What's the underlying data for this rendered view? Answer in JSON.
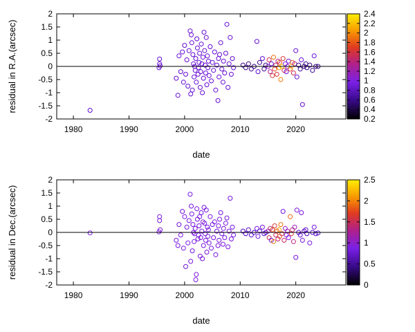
{
  "chart_data": [
    {
      "type": "scatter",
      "xlabel": "date",
      "ylabel": "residual in R.A.(arcsec)",
      "xlim": [
        1977,
        2029
      ],
      "ylim": [
        -2,
        2
      ],
      "xticks": [
        "1980",
        "1990",
        "2000",
        "2010",
        "2020"
      ],
      "yticks": [
        "-2",
        "-1.5",
        "-1",
        "-0.5",
        "0",
        "0.5",
        "1",
        "1.5",
        "2"
      ],
      "colorbar": {
        "min": 0.2,
        "max": 2.4,
        "ticks": [
          "0.2",
          "0.4",
          "0.6",
          "0.8",
          "1",
          "1.2",
          "1.4",
          "1.6",
          "1.8",
          "2",
          "2.2",
          "2.4"
        ],
        "palette": [
          "#000000",
          "#5000c8",
          "#8a1ae8",
          "#c0206a",
          "#e84a10",
          "#f89a00",
          "#ffee00"
        ]
      },
      "grid": false,
      "zero_line": true,
      "points": [
        [
          1983.0,
          -1.67,
          0.7
        ],
        [
          1995.5,
          0.28,
          0.7
        ],
        [
          1995.5,
          0.1,
          0.7
        ],
        [
          1995.6,
          0.02,
          0.7
        ],
        [
          1995.4,
          -0.05,
          0.7
        ],
        [
          1998.5,
          -0.45,
          0.7
        ],
        [
          1998.8,
          -1.1,
          0.7
        ],
        [
          1999.0,
          0.4,
          0.7
        ],
        [
          1999.3,
          -0.2,
          0.7
        ],
        [
          1999.6,
          0.55,
          0.7
        ],
        [
          1999.8,
          -0.6,
          0.7
        ],
        [
          2000.0,
          0.8,
          0.7
        ],
        [
          2000.2,
          -0.3,
          0.7
        ],
        [
          2000.4,
          0.25,
          0.7
        ],
        [
          2000.6,
          -0.75,
          0.7
        ],
        [
          2000.8,
          0.6,
          0.7
        ],
        [
          2001.0,
          1.35,
          0.7
        ],
        [
          2001.1,
          -1.05,
          0.7
        ],
        [
          2001.2,
          1.2,
          0.7
        ],
        [
          2001.3,
          0.9,
          0.7
        ],
        [
          2001.4,
          -0.9,
          0.7
        ],
        [
          2001.5,
          0.45,
          0.7
        ],
        [
          2001.6,
          0.1,
          0.7
        ],
        [
          2001.7,
          -0.4,
          0.7
        ],
        [
          2001.8,
          0.0,
          0.7
        ],
        [
          2001.9,
          -0.15,
          0.7
        ],
        [
          2002.0,
          0.3,
          0.7
        ],
        [
          2002.1,
          -0.6,
          0.7
        ],
        [
          2002.2,
          1.05,
          0.7
        ],
        [
          2002.3,
          0.7,
          0.7
        ],
        [
          2002.4,
          -0.3,
          0.7
        ],
        [
          2002.5,
          -0.05,
          0.7
        ],
        [
          2002.6,
          0.15,
          0.7
        ],
        [
          2002.7,
          0.5,
          0.7
        ],
        [
          2002.8,
          -0.8,
          0.7
        ],
        [
          2002.9,
          -0.2,
          0.7
        ],
        [
          2003.0,
          0.85,
          0.7
        ],
        [
          2003.1,
          0.1,
          0.7
        ],
        [
          2003.2,
          -1.0,
          0.7
        ],
        [
          2003.3,
          0.35,
          0.7
        ],
        [
          2003.4,
          -0.45,
          0.7
        ],
        [
          2003.5,
          1.3,
          0.7
        ],
        [
          2003.6,
          0.6,
          0.7
        ],
        [
          2003.7,
          0.05,
          0.7
        ],
        [
          2003.8,
          -0.25,
          0.7
        ],
        [
          2003.9,
          1.1,
          0.7
        ],
        [
          2004.0,
          -0.7,
          0.7
        ],
        [
          2004.1,
          0.4,
          0.7
        ],
        [
          2004.2,
          -0.05,
          0.7
        ],
        [
          2004.3,
          0.2,
          0.7
        ],
        [
          2004.4,
          -0.35,
          0.7
        ],
        [
          2004.6,
          0.75,
          0.7
        ],
        [
          2004.8,
          -0.55,
          0.7
        ],
        [
          2005.0,
          0.15,
          0.7
        ],
        [
          2005.2,
          -0.15,
          0.7
        ],
        [
          2005.4,
          0.55,
          0.7
        ],
        [
          2005.6,
          -0.9,
          0.7
        ],
        [
          2005.8,
          0.05,
          0.7
        ],
        [
          2006.0,
          -1.3,
          0.7
        ],
        [
          2006.1,
          0.3,
          0.7
        ],
        [
          2006.2,
          -0.4,
          0.7
        ],
        [
          2006.3,
          0.45,
          0.7
        ],
        [
          2006.5,
          0.9,
          0.7
        ],
        [
          2006.7,
          -0.1,
          0.7
        ],
        [
          2006.9,
          -0.6,
          0.7
        ],
        [
          2007.0,
          0.2,
          0.7
        ],
        [
          2007.2,
          -0.25,
          0.7
        ],
        [
          2007.4,
          0.5,
          0.7
        ],
        [
          2007.6,
          1.6,
          0.7
        ],
        [
          2007.8,
          -0.8,
          0.7
        ],
        [
          2008.0,
          0.1,
          0.7
        ],
        [
          2008.2,
          1.1,
          0.7
        ],
        [
          2008.4,
          -0.3,
          0.7
        ],
        [
          2008.6,
          0.3,
          0.7
        ],
        [
          2008.8,
          -0.05,
          0.7
        ],
        [
          2010.5,
          0.05,
          0.45
        ],
        [
          2011.0,
          -0.05,
          0.45
        ],
        [
          2011.5,
          0.1,
          0.45
        ],
        [
          2012.0,
          -0.1,
          0.45
        ],
        [
          2012.5,
          0.0,
          0.45
        ],
        [
          2013.0,
          0.95,
          0.7
        ],
        [
          2013.2,
          -0.2,
          0.7
        ],
        [
          2013.5,
          0.15,
          0.45
        ],
        [
          2014.0,
          0.3,
          0.7
        ],
        [
          2014.3,
          -0.1,
          0.45
        ],
        [
          2014.6,
          0.05,
          0.45
        ],
        [
          2015.0,
          0.0,
          1.0
        ],
        [
          2015.2,
          0.25,
          1.4
        ],
        [
          2015.4,
          -0.2,
          1.2
        ],
        [
          2015.6,
          0.1,
          0.7
        ],
        [
          2015.8,
          -0.35,
          1.5
        ],
        [
          2016.0,
          0.35,
          1.8
        ],
        [
          2016.2,
          -0.1,
          1.6
        ],
        [
          2016.4,
          0.05,
          1.3
        ],
        [
          2016.6,
          -0.3,
          1.5
        ],
        [
          2016.8,
          0.2,
          1.2
        ],
        [
          2017.0,
          -0.05,
          2.0
        ],
        [
          2017.1,
          0.15,
          1.7
        ],
        [
          2017.3,
          -0.5,
          1.9
        ],
        [
          2017.5,
          0.0,
          2.3
        ],
        [
          2017.7,
          0.3,
          1.5
        ],
        [
          2017.9,
          -0.15,
          1.4
        ],
        [
          2018.1,
          0.1,
          0.9
        ],
        [
          2018.3,
          -0.2,
          0.8
        ],
        [
          2018.5,
          0.0,
          1.0
        ],
        [
          2018.7,
          0.2,
          0.8
        ],
        [
          2019.0,
          -0.1,
          1.6
        ],
        [
          2019.2,
          0.0,
          2.2
        ],
        [
          2019.4,
          0.15,
          1.7
        ],
        [
          2019.6,
          -0.25,
          1.4
        ],
        [
          2019.8,
          0.1,
          1.2
        ],
        [
          2020.0,
          0.6,
          0.7
        ],
        [
          2020.2,
          -0.4,
          0.7
        ],
        [
          2020.5,
          0.05,
          0.45
        ],
        [
          2020.8,
          -0.1,
          0.45
        ],
        [
          2021.0,
          0.25,
          0.7
        ],
        [
          2021.2,
          -1.45,
          0.7
        ],
        [
          2021.5,
          0.0,
          0.45
        ],
        [
          2021.8,
          0.1,
          0.45
        ],
        [
          2022.0,
          -0.05,
          0.45
        ],
        [
          2022.5,
          0.05,
          0.45
        ],
        [
          2023.0,
          -0.15,
          0.45
        ],
        [
          2023.3,
          0.4,
          0.7
        ],
        [
          2023.6,
          0.0,
          0.45
        ],
        [
          2024.0,
          0.0,
          0.45
        ]
      ]
    },
    {
      "type": "scatter",
      "xlabel": "date",
      "ylabel": "residual in Dec.(arcsec)",
      "xlim": [
        1977,
        2029
      ],
      "ylim": [
        -2,
        2
      ],
      "xticks": [
        "1980",
        "1990",
        "2000",
        "2010",
        "2020"
      ],
      "yticks": [
        "-2",
        "-1.5",
        "-1",
        "-0.5",
        "0",
        "0.5",
        "1",
        "1.5",
        "2"
      ],
      "colorbar": {
        "min": 0,
        "max": 2.5,
        "ticks": [
          "0",
          "0.5",
          "1",
          "1.5",
          "2",
          "2.5"
        ],
        "palette": [
          "#000000",
          "#5000c8",
          "#8a1ae8",
          "#c0206a",
          "#e84a10",
          "#f89a00",
          "#ffee00"
        ]
      },
      "grid": false,
      "zero_line": true,
      "points": [
        [
          1983.0,
          -0.02,
          0.7
        ],
        [
          1995.5,
          0.6,
          0.7
        ],
        [
          1995.5,
          0.45,
          0.7
        ],
        [
          1995.6,
          0.1,
          0.7
        ],
        [
          1995.4,
          0.02,
          0.7
        ],
        [
          1998.5,
          -0.3,
          0.7
        ],
        [
          1998.8,
          -0.5,
          0.7
        ],
        [
          1999.0,
          0.3,
          0.7
        ],
        [
          1999.3,
          -0.1,
          0.7
        ],
        [
          1999.6,
          0.8,
          0.7
        ],
        [
          1999.8,
          -0.6,
          0.7
        ],
        [
          2000.0,
          0.6,
          0.7
        ],
        [
          2000.2,
          -1.3,
          0.7
        ],
        [
          2000.4,
          0.2,
          0.7
        ],
        [
          2000.6,
          -0.4,
          0.7
        ],
        [
          2000.8,
          0.45,
          0.7
        ],
        [
          2001.0,
          1.45,
          0.7
        ],
        [
          2001.1,
          -1.1,
          0.7
        ],
        [
          2001.2,
          1.0,
          0.7
        ],
        [
          2001.3,
          0.7,
          0.7
        ],
        [
          2001.4,
          -0.7,
          0.7
        ],
        [
          2001.5,
          0.3,
          0.7
        ],
        [
          2001.6,
          0.0,
          0.7
        ],
        [
          2001.7,
          -0.35,
          0.7
        ],
        [
          2001.8,
          -0.05,
          0.7
        ],
        [
          2001.9,
          0.15,
          0.7
        ],
        [
          2002.0,
          -1.8,
          0.7
        ],
        [
          2002.1,
          -1.6,
          0.7
        ],
        [
          2002.2,
          0.9,
          0.7
        ],
        [
          2002.3,
          0.5,
          0.7
        ],
        [
          2002.4,
          -0.25,
          0.7
        ],
        [
          2002.5,
          -0.1,
          0.7
        ],
        [
          2002.6,
          0.25,
          0.7
        ],
        [
          2002.7,
          0.6,
          0.7
        ],
        [
          2002.8,
          -0.9,
          0.7
        ],
        [
          2002.9,
          -0.2,
          0.7
        ],
        [
          2003.0,
          0.75,
          0.7
        ],
        [
          2003.1,
          0.05,
          0.7
        ],
        [
          2003.2,
          -1.0,
          0.7
        ],
        [
          2003.3,
          0.4,
          0.7
        ],
        [
          2003.4,
          -0.5,
          0.7
        ],
        [
          2003.5,
          0.95,
          0.7
        ],
        [
          2003.6,
          0.35,
          0.7
        ],
        [
          2003.7,
          -0.05,
          0.7
        ],
        [
          2003.8,
          -0.3,
          0.7
        ],
        [
          2003.9,
          0.85,
          0.7
        ],
        [
          2004.0,
          -0.75,
          0.7
        ],
        [
          2004.1,
          0.2,
          0.7
        ],
        [
          2004.2,
          -0.15,
          0.7
        ],
        [
          2004.3,
          0.1,
          0.7
        ],
        [
          2004.4,
          -0.4,
          0.7
        ],
        [
          2004.6,
          0.6,
          0.7
        ],
        [
          2004.8,
          -0.6,
          0.7
        ],
        [
          2005.0,
          0.3,
          0.7
        ],
        [
          2005.2,
          -0.2,
          0.7
        ],
        [
          2005.4,
          0.4,
          0.7
        ],
        [
          2005.6,
          -0.85,
          0.7
        ],
        [
          2005.8,
          0.05,
          0.7
        ],
        [
          2006.0,
          -0.5,
          0.7
        ],
        [
          2006.1,
          0.25,
          0.7
        ],
        [
          2006.2,
          -0.3,
          0.7
        ],
        [
          2006.3,
          0.5,
          0.7
        ],
        [
          2006.5,
          0.75,
          0.7
        ],
        [
          2006.7,
          -0.05,
          0.7
        ],
        [
          2006.9,
          -0.45,
          0.7
        ],
        [
          2007.0,
          0.15,
          0.7
        ],
        [
          2007.2,
          -0.2,
          0.7
        ],
        [
          2007.4,
          0.35,
          0.7
        ],
        [
          2007.6,
          0.55,
          0.7
        ],
        [
          2007.8,
          -0.55,
          0.7
        ],
        [
          2008.0,
          0.05,
          0.7
        ],
        [
          2008.2,
          1.3,
          0.7
        ],
        [
          2008.4,
          -0.25,
          0.7
        ],
        [
          2008.6,
          0.2,
          0.7
        ],
        [
          2008.8,
          -0.1,
          0.7
        ],
        [
          2010.5,
          0.05,
          0.45
        ],
        [
          2011.0,
          -0.05,
          0.45
        ],
        [
          2011.5,
          0.1,
          0.45
        ],
        [
          2012.0,
          -0.1,
          0.45
        ],
        [
          2012.5,
          0.0,
          0.45
        ],
        [
          2013.0,
          0.15,
          0.7
        ],
        [
          2013.2,
          -0.15,
          0.7
        ],
        [
          2013.5,
          0.05,
          0.45
        ],
        [
          2014.0,
          0.2,
          0.7
        ],
        [
          2014.3,
          -0.05,
          0.45
        ],
        [
          2014.6,
          0.0,
          0.45
        ],
        [
          2015.0,
          0.05,
          1.0
        ],
        [
          2015.2,
          -0.2,
          1.4
        ],
        [
          2015.4,
          0.15,
          1.2
        ],
        [
          2015.6,
          -0.3,
          0.7
        ],
        [
          2015.8,
          0.1,
          1.6
        ],
        [
          2016.0,
          -0.35,
          1.9
        ],
        [
          2016.2,
          0.25,
          1.5
        ],
        [
          2016.4,
          -0.1,
          1.3
        ],
        [
          2016.6,
          0.05,
          1.6
        ],
        [
          2016.8,
          -0.25,
          1.2
        ],
        [
          2017.0,
          0.1,
          2.1
        ],
        [
          2017.1,
          -0.15,
          1.7
        ],
        [
          2017.3,
          0.3,
          1.9
        ],
        [
          2017.5,
          -0.05,
          1.4
        ],
        [
          2017.7,
          0.8,
          0.7
        ],
        [
          2017.9,
          -0.3,
          1.3
        ],
        [
          2018.1,
          0.15,
          0.9
        ],
        [
          2018.3,
          -0.1,
          0.8
        ],
        [
          2018.5,
          0.05,
          1.0
        ],
        [
          2018.7,
          -0.2,
          0.8
        ],
        [
          2019.0,
          0.6,
          1.8
        ],
        [
          2019.2,
          -0.05,
          1.5
        ],
        [
          2019.4,
          0.1,
          1.3
        ],
        [
          2019.6,
          -0.35,
          1.2
        ],
        [
          2019.8,
          0.2,
          1.0
        ],
        [
          2020.0,
          -0.95,
          0.7
        ],
        [
          2020.2,
          0.85,
          0.7
        ],
        [
          2020.5,
          0.0,
          0.45
        ],
        [
          2020.8,
          -0.1,
          0.45
        ],
        [
          2021.0,
          0.75,
          0.7
        ],
        [
          2021.2,
          -0.3,
          0.7
        ],
        [
          2021.5,
          0.05,
          0.45
        ],
        [
          2021.8,
          0.1,
          0.45
        ],
        [
          2022.0,
          -0.05,
          0.45
        ],
        [
          2022.5,
          -0.4,
          0.7
        ],
        [
          2023.0,
          0.0,
          0.45
        ],
        [
          2023.3,
          0.2,
          0.7
        ],
        [
          2023.6,
          -0.05,
          0.45
        ],
        [
          2024.0,
          -0.02,
          0.45
        ]
      ]
    }
  ]
}
